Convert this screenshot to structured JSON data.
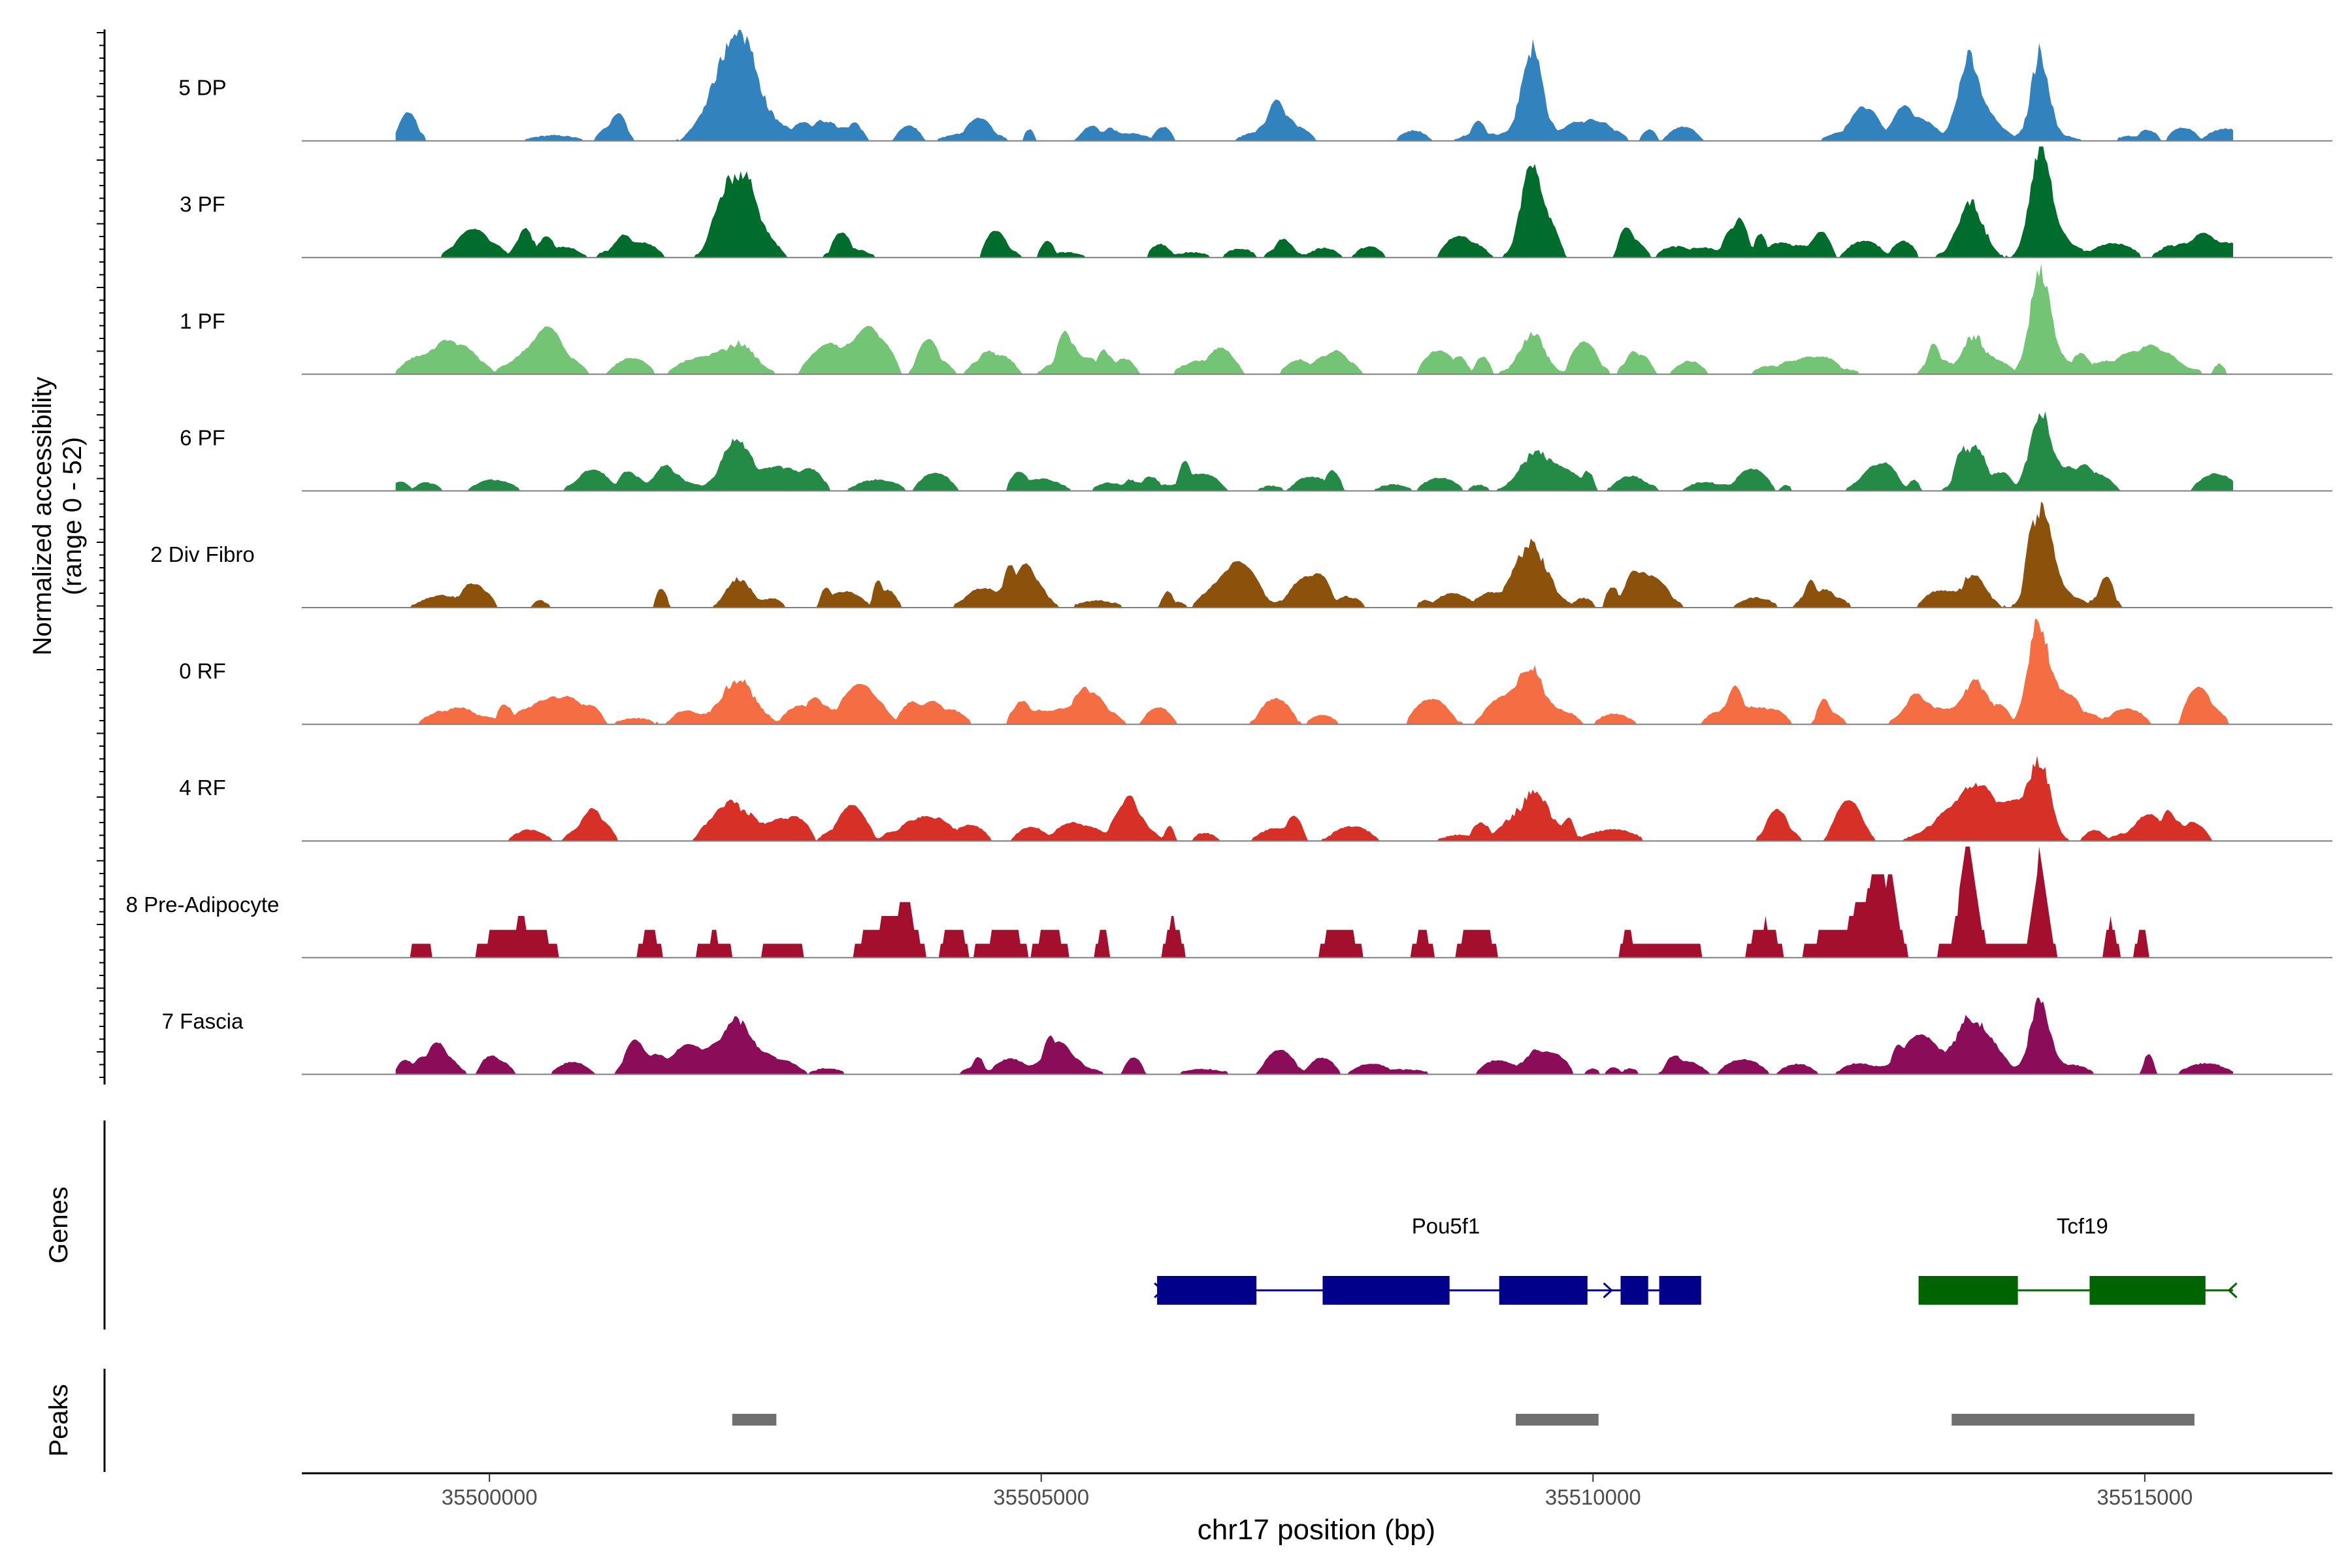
{
  "chart_data": {
    "type": "area",
    "title": "",
    "chromosome": "chr17",
    "xlabel": "chr17 position (bp)",
    "ylabel_line1": "Normalized accessibility",
    "ylabel_line2": "(range 0 - 52)",
    "y_range": [
      0,
      52
    ],
    "x_range": [
      35498300,
      35516700
    ],
    "x_ticks": [
      35500000,
      35505000,
      35510000,
      35515000
    ],
    "x_tick_labels": [
      "35500000",
      "35505000",
      "35510000",
      "35515000"
    ],
    "track_start": 35499150,
    "track_end": 35515800,
    "tracks": [
      {
        "name": "5 DP",
        "color": "#3182BD",
        "noise": 0.14,
        "peaks": [
          [
            35502250,
            450,
            1.0,
            140
          ],
          [
            35509450,
            240,
            0.9,
            90
          ],
          [
            35513400,
            230,
            0.72,
            90
          ],
          [
            35514050,
            200,
            0.88,
            80
          ]
        ]
      },
      {
        "name": "3 PF",
        "color": "#006D2C",
        "noise": 0.16,
        "peaks": [
          [
            35502250,
            370,
            0.58,
            130
          ],
          [
            35509450,
            240,
            0.85,
            100
          ],
          [
            35513450,
            260,
            0.45,
            90
          ],
          [
            35514050,
            220,
            1.0,
            90
          ]
        ]
      },
      {
        "name": "1 PF",
        "color": "#74C476",
        "noise": 0.18,
        "peaks": [
          [
            35502250,
            370,
            0.3,
            120
          ],
          [
            35509450,
            280,
            0.4,
            110
          ],
          [
            35513450,
            260,
            0.38,
            100
          ],
          [
            35514050,
            230,
            1.0,
            85
          ]
        ]
      },
      {
        "name": "6 PF",
        "color": "#238B45",
        "noise": 0.16,
        "peaks": [
          [
            35502250,
            300,
            0.32,
            90
          ],
          [
            35509450,
            320,
            0.32,
            120
          ],
          [
            35513450,
            280,
            0.44,
            100
          ],
          [
            35514050,
            230,
            0.78,
            85
          ]
        ]
      },
      {
        "name": "2 Div Fibro",
        "color": "#8C510A",
        "noise": 0.17,
        "peaks": [
          [
            35502250,
            260,
            0.18,
            100
          ],
          [
            35509450,
            380,
            0.52,
            130
          ],
          [
            35513450,
            260,
            0.35,
            100
          ],
          [
            35514050,
            230,
            0.7,
            85
          ]
        ]
      },
      {
        "name": "0 RF",
        "color": "#F46D43",
        "noise": 0.18,
        "peaks": [
          [
            35502250,
            380,
            0.45,
            120
          ],
          [
            35509450,
            260,
            0.55,
            90
          ],
          [
            35513450,
            280,
            0.33,
            100
          ],
          [
            35514050,
            230,
            0.88,
            85
          ]
        ]
      },
      {
        "name": "4 RF",
        "color": "#D73027",
        "noise": 0.16,
        "peaks": [
          [
            35502250,
            400,
            0.3,
            140
          ],
          [
            35509450,
            500,
            0.38,
            180
          ],
          [
            35513450,
            300,
            0.3,
            100
          ],
          [
            35514050,
            250,
            0.55,
            90
          ]
        ]
      },
      {
        "name": "8 Pre-Adipocyte",
        "color": "#A50F2E",
        "noise": 0.32,
        "sparse": true,
        "peaks": [
          [
            35513400,
            180,
            1.0,
            60
          ],
          [
            35514050,
            160,
            1.0,
            60
          ],
          [
            35514700,
            120,
            0.35,
            60
          ],
          [
            35506200,
            150,
            0.4,
            60
          ],
          [
            35503800,
            200,
            0.4,
            60
          ]
        ]
      },
      {
        "name": "7 Fascia",
        "color": "#8B0D5A",
        "noise": 0.15,
        "peaks": [
          [
            35502250,
            300,
            0.3,
            100
          ],
          [
            35509450,
            260,
            0.18,
            100
          ],
          [
            35513400,
            350,
            0.5,
            120
          ],
          [
            35514050,
            230,
            0.72,
            85
          ]
        ]
      }
    ],
    "genes_label": "Genes",
    "genes": [
      {
        "name": "Pou5f1",
        "strand": "+",
        "color": "#00008B",
        "start": 35506050,
        "end": 35510750,
        "exons": [
          [
            35506050,
            35506950
          ],
          [
            35507550,
            35508700
          ],
          [
            35509150,
            35509950
          ],
          [
            35510250,
            35510500
          ],
          [
            35510650,
            35510750
          ]
        ],
        "extra_exons": [
          [
            35510600,
            35510980
          ]
        ]
      },
      {
        "name": "Tcf19",
        "strand": "-",
        "color": "#006400",
        "start": 35512950,
        "end": 35515800,
        "exons": [
          [
            35512950,
            35513850
          ],
          [
            35514500,
            35515550
          ]
        ]
      }
    ],
    "peaks_label": "Peaks",
    "peak_regions": [
      [
        35502200,
        35502600
      ],
      [
        35509300,
        35510050
      ],
      [
        35513250,
        35515450
      ]
    ],
    "peak_color": "#707070"
  }
}
